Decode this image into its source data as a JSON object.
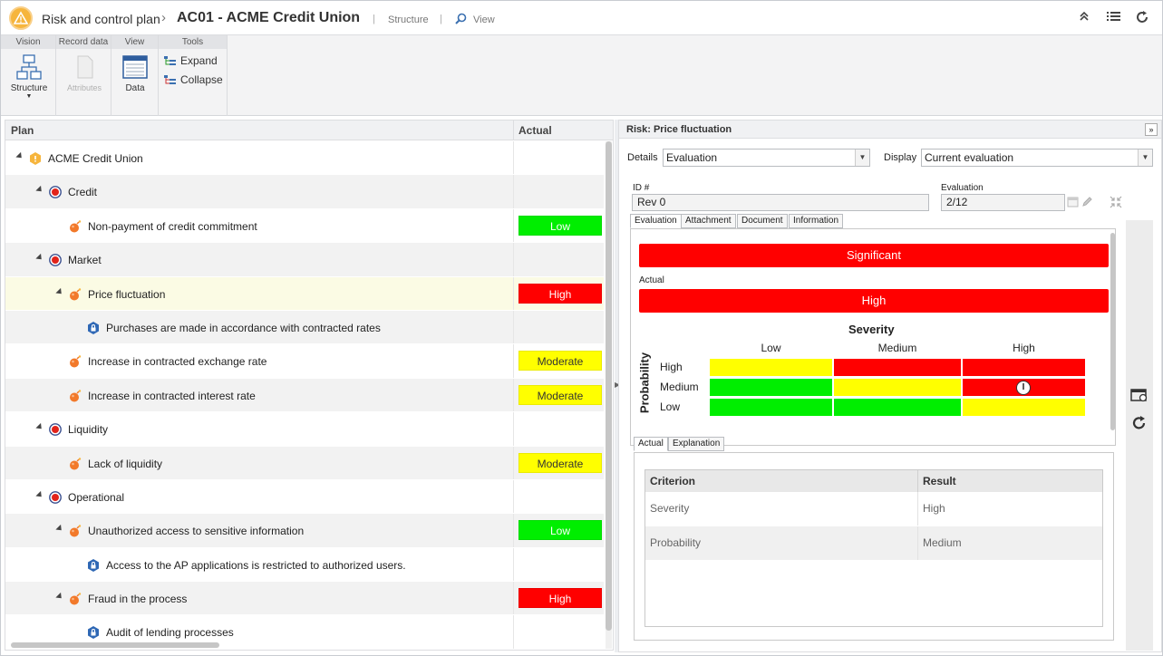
{
  "header": {
    "app_title": "Risk and control plan",
    "record_title": "AC01 - ACME Credit Union",
    "structure_link": "Structure",
    "view_link": "View"
  },
  "ribbon": {
    "groups": {
      "vision": "Vision",
      "record_data": "Record data",
      "view": "View",
      "tools": "Tools"
    },
    "structure_label": "Structure",
    "attributes_label": "Attributes",
    "data_label": "Data",
    "expand_label": "Expand",
    "collapse_label": "Collapse"
  },
  "plan": {
    "col_plan": "Plan",
    "col_actual": "Actual",
    "rows": [
      {
        "label": "ACME Credit Union",
        "type": "root",
        "level": 0,
        "status": ""
      },
      {
        "label": "Credit",
        "type": "category",
        "level": 1,
        "status": ""
      },
      {
        "label": "Non-payment of credit commitment",
        "type": "risk",
        "level": 2,
        "status": "Low"
      },
      {
        "label": "Market",
        "type": "category",
        "level": 1,
        "status": ""
      },
      {
        "label": "Price fluctuation",
        "type": "risk",
        "level": 2,
        "status": "High"
      },
      {
        "label": "Purchases are made in accordance with contracted rates",
        "type": "control",
        "level": 3,
        "status": ""
      },
      {
        "label": "Increase in contracted exchange rate",
        "type": "risk",
        "level": 2,
        "status": "Moderate"
      },
      {
        "label": "Increase in contracted interest rate",
        "type": "risk",
        "level": 2,
        "status": "Moderate"
      },
      {
        "label": "Liquidity",
        "type": "category",
        "level": 1,
        "status": ""
      },
      {
        "label": "Lack of liquidity",
        "type": "risk",
        "level": 2,
        "status": "Moderate"
      },
      {
        "label": "Operational",
        "type": "category",
        "level": 1,
        "status": ""
      },
      {
        "label": "Unauthorized access to sensitive information",
        "type": "risk",
        "level": 2,
        "status": "Low"
      },
      {
        "label": "Access to the AP applications is restricted to authorized users.",
        "type": "control",
        "level": 3,
        "status": ""
      },
      {
        "label": "Fraud in the process",
        "type": "risk",
        "level": 2,
        "status": "High"
      },
      {
        "label": "Audit of lending processes",
        "type": "control",
        "level": 3,
        "status": ""
      }
    ]
  },
  "detail": {
    "title": "Risk: Price fluctuation",
    "details_label": "Details",
    "details_value": "Evaluation",
    "display_label": "Display",
    "display_value": "Current evaluation",
    "id_label": "ID #",
    "id_value": "Rev 0",
    "evaluation_label": "Evaluation",
    "evaluation_value": "2/12",
    "tabs": [
      "Evaluation",
      "Attachment",
      "Document",
      "Information"
    ],
    "overall": "Significant",
    "actual_label": "Actual",
    "actual_value": "High",
    "matrix": {
      "x_title": "Severity",
      "y_title": "Probability",
      "columns": [
        "Low",
        "Medium",
        "High"
      ],
      "rows": [
        "High",
        "Medium",
        "Low"
      ],
      "marker": "I"
    },
    "subtabs": [
      "Actual",
      "Explanation"
    ],
    "table": {
      "headers": [
        "Criterion",
        "Result"
      ],
      "rows": [
        [
          "Severity",
          "High"
        ],
        [
          "Probability",
          "Medium"
        ]
      ]
    }
  },
  "colors": {
    "low": "#00ee00",
    "moderate": "#ffff00",
    "high": "#ff0000",
    "accent": "#f6b53d"
  }
}
